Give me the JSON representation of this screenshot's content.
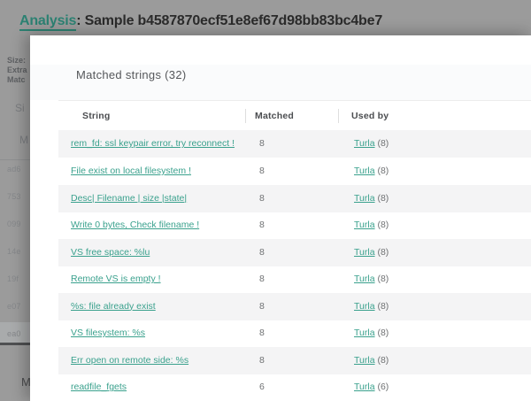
{
  "page_title": {
    "link": "Analysis",
    "rest": ": Sample b4587870ecf51e8ef67d98bb83bc4be7"
  },
  "backdrop": {
    "labels": [
      "Size:",
      "Extra",
      "Matc"
    ],
    "section_fragment_1": "Si",
    "section_fragment_2": "M",
    "hash_fragments": [
      "ad6",
      "753",
      "099",
      "14e",
      "19f",
      "e07",
      "ea0"
    ],
    "bottom_fragment": "M"
  },
  "modal": {
    "title": "Matched strings (32)",
    "table": {
      "columns": {
        "string": "String",
        "matched": "Matched",
        "used_by": "Used by"
      },
      "rows": [
        {
          "string": "rem_fd: ssl keypair error, try reconnect !",
          "matched": "8",
          "used_by": "Turla",
          "used_by_count": "(8)"
        },
        {
          "string": "File exist on local filesystem !",
          "matched": "8",
          "used_by": "Turla",
          "used_by_count": "(8)"
        },
        {
          "string": "Desc| Filename | size |state|",
          "matched": "8",
          "used_by": "Turla",
          "used_by_count": "(8)"
        },
        {
          "string": "Write 0 bytes, Check filename !",
          "matched": "8",
          "used_by": "Turla",
          "used_by_count": "(8)"
        },
        {
          "string": "VS free space: %lu",
          "matched": "8",
          "used_by": "Turla",
          "used_by_count": "(8)"
        },
        {
          "string": "Remote VS is empty !",
          "matched": "8",
          "used_by": "Turla",
          "used_by_count": "(8)"
        },
        {
          "string": "%s: file already exist",
          "matched": "8",
          "used_by": "Turla",
          "used_by_count": "(8)"
        },
        {
          "string": "VS filesystem: %s",
          "matched": "8",
          "used_by": "Turla",
          "used_by_count": "(8)"
        },
        {
          "string": "Err open on remote side: %s",
          "matched": "8",
          "used_by": "Turla",
          "used_by_count": "(8)"
        },
        {
          "string": "readfile_fgets",
          "matched": "6",
          "used_by": "Turla",
          "used_by_count": "(6)"
        }
      ]
    }
  },
  "colors": {
    "accent_teal": "#3aa18d",
    "dimmed_teal": "#2c8172",
    "stripe_gray": "#f4f4f5",
    "overlay_gray": "#9b9b9b"
  }
}
